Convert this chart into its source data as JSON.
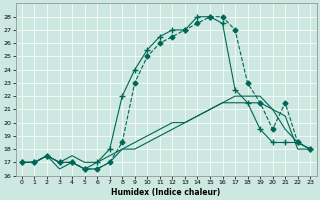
{
  "xlabel": "Humidex (Indice chaleur)",
  "bg_color": "#cce8e0",
  "line_color": "#006655",
  "xlim": [
    -0.5,
    23.5
  ],
  "ylim": [
    16,
    29
  ],
  "yticks": [
    16,
    17,
    18,
    19,
    20,
    21,
    22,
    23,
    24,
    25,
    26,
    27,
    28
  ],
  "xticks": [
    0,
    1,
    2,
    3,
    4,
    5,
    6,
    7,
    8,
    9,
    10,
    11,
    12,
    13,
    14,
    15,
    16,
    17,
    18,
    19,
    20,
    21,
    22,
    23
  ],
  "series": [
    {
      "x": [
        0,
        1,
        2,
        3,
        4,
        5,
        6,
        7,
        8,
        9,
        10,
        11,
        12,
        13,
        14,
        15,
        16,
        17,
        18,
        19,
        20,
        21,
        22,
        23
      ],
      "y": [
        17,
        17,
        17.5,
        17,
        17.5,
        17,
        17,
        17.5,
        18,
        18,
        18.5,
        19,
        19.5,
        20,
        20.5,
        21,
        21.5,
        22,
        22,
        22,
        21,
        19.5,
        18.5,
        18
      ],
      "style": "-",
      "marker": null,
      "lw": 0.8
    },
    {
      "x": [
        0,
        1,
        2,
        3,
        4,
        5,
        6,
        7,
        8,
        9,
        10,
        11,
        12,
        13,
        14,
        15,
        16,
        17,
        18,
        19,
        20,
        21,
        22,
        23
      ],
      "y": [
        17,
        17,
        17.5,
        16.5,
        17,
        16.5,
        16.5,
        17,
        18,
        18.5,
        19,
        19.5,
        20,
        20,
        20.5,
        21,
        21.5,
        21.5,
        21.5,
        21.5,
        21,
        20.5,
        18,
        18
      ],
      "style": "-",
      "marker": null,
      "lw": 0.8
    },
    {
      "x": [
        0,
        1,
        2,
        3,
        4,
        5,
        6,
        7,
        8,
        9,
        10,
        11,
        12,
        13,
        14,
        15,
        16,
        17,
        18,
        19,
        20,
        21,
        22,
        23
      ],
      "y": [
        17,
        17,
        17.5,
        17,
        17,
        16.5,
        16.5,
        17,
        18.5,
        23,
        25,
        26,
        26.5,
        27,
        27.5,
        28,
        28,
        27,
        23,
        21.5,
        19.5,
        21.5,
        18.5,
        18
      ],
      "style": "--",
      "marker": "D",
      "ms": 2.5,
      "lw": 0.8
    },
    {
      "x": [
        0,
        1,
        2,
        3,
        4,
        5,
        6,
        7,
        8,
        9,
        10,
        11,
        12,
        13,
        14,
        15,
        16,
        17,
        18,
        19,
        20,
        21,
        22,
        23
      ],
      "y": [
        17,
        17,
        17.5,
        17,
        17,
        16.5,
        17,
        18,
        22,
        24,
        25.5,
        26.5,
        27,
        27,
        28,
        28,
        27.5,
        22.5,
        21.5,
        19.5,
        18.5,
        18.5,
        18.5,
        18
      ],
      "style": "-",
      "marker": "+",
      "ms": 4,
      "lw": 0.8
    }
  ]
}
